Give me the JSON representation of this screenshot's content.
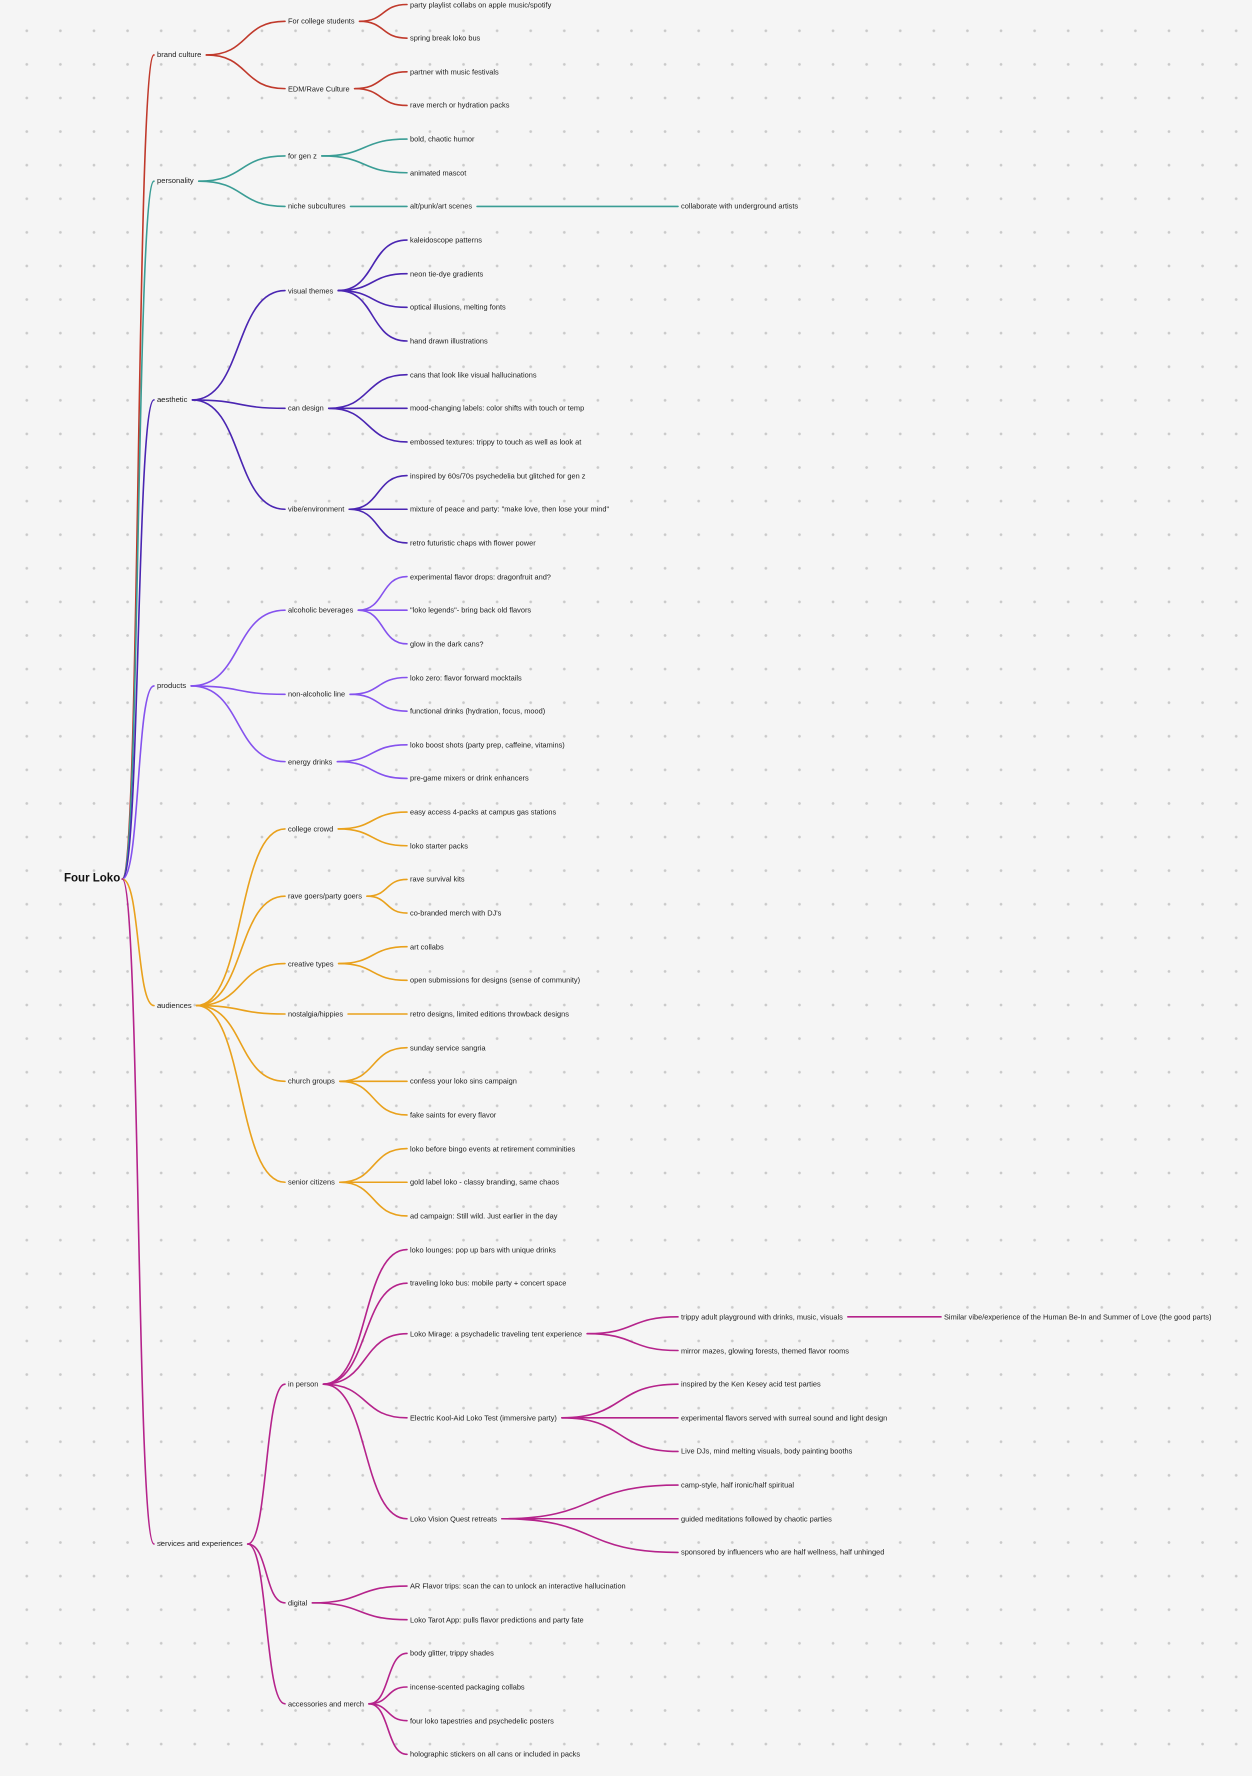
{
  "colors": {
    "background": "#f5f5f5",
    "grid_dot": "#c9c9c9",
    "brand_culture": "#c0392b",
    "personality": "#3a9d95",
    "aesthetic": "#4a25b2",
    "products": "#8552ee",
    "audiences": "#e9a11c",
    "services": "#b5238b"
  },
  "mindmap": {
    "root": "Four Loko",
    "branches": [
      {
        "label": "brand culture",
        "color": "#c0392b",
        "children": [
          {
            "label": "For college students",
            "children": [
              {
                "label": "party playlist collabs on apple music/spotify"
              },
              {
                "label": "spring break loko bus"
              }
            ]
          },
          {
            "label": "EDM/Rave Culture",
            "children": [
              {
                "label": "partner with music festivals"
              },
              {
                "label": "rave merch or hydration packs"
              }
            ]
          }
        ]
      },
      {
        "label": "personality",
        "color": "#3a9d95",
        "children": [
          {
            "label": "for gen z",
            "children": [
              {
                "label": "bold, chaotic humor"
              },
              {
                "label": "animated mascot"
              }
            ]
          },
          {
            "label": "niche subcultures",
            "children": [
              {
                "label": "alt/punk/art scenes",
                "children": [
                  {
                    "label": "collaborate with underground artists"
                  }
                ]
              }
            ]
          }
        ]
      },
      {
        "label": "aesthetic",
        "color": "#4a25b2",
        "children": [
          {
            "label": "visual themes",
            "children": [
              {
                "label": "kaleidoscope patterns"
              },
              {
                "label": "neon tie-dye gradients"
              },
              {
                "label": "optical illusions, melting fonts"
              },
              {
                "label": "hand drawn illustrations"
              }
            ]
          },
          {
            "label": "can design",
            "children": [
              {
                "label": "cans that look like visual hallucinations"
              },
              {
                "label": "mood-changing labels: color shifts with touch or temp"
              },
              {
                "label": "embossed textures: trippy to touch as well as look at"
              }
            ]
          },
          {
            "label": "vibe/environment",
            "children": [
              {
                "label": "inspired by 60s/70s psychedelia but glitched for gen z"
              },
              {
                "label": "mixture of peace and party: \"make love, then lose your mind\""
              },
              {
                "label": "retro futuristic chaps with flower power"
              }
            ]
          }
        ]
      },
      {
        "label": "products",
        "color": "#8552ee",
        "children": [
          {
            "label": "alcoholic beverages",
            "children": [
              {
                "label": "experimental flavor drops: dragonfruit and?"
              },
              {
                "label": "\"loko legends\"- bring back old flavors"
              },
              {
                "label": "glow in the dark cans?"
              }
            ]
          },
          {
            "label": "non-alcoholic line",
            "children": [
              {
                "label": "loko zero: flavor forward mocktails"
              },
              {
                "label": "functional drinks (hydration, focus, mood)"
              }
            ]
          },
          {
            "label": "energy drinks",
            "children": [
              {
                "label": "loko boost shots (party prep, caffeine, vitamins)"
              },
              {
                "label": "pre-game mixers or drink enhancers"
              }
            ]
          }
        ]
      },
      {
        "label": "audiences",
        "color": "#e9a11c",
        "children": [
          {
            "label": "college crowd",
            "children": [
              {
                "label": "easy access 4-packs at campus gas stations"
              },
              {
                "label": "loko starter packs"
              }
            ]
          },
          {
            "label": "rave goers/party goers",
            "children": [
              {
                "label": "rave survival kits"
              },
              {
                "label": "co-branded merch with DJ's"
              }
            ]
          },
          {
            "label": "creative types",
            "children": [
              {
                "label": "art collabs"
              },
              {
                "label": "open submissions for designs (sense of community)"
              }
            ]
          },
          {
            "label": "nostalgia/hippies",
            "children": [
              {
                "label": "retro designs, limited editions throwback designs"
              }
            ]
          },
          {
            "label": "church groups",
            "children": [
              {
                "label": "sunday service sangria"
              },
              {
                "label": "confess your loko sins campaign"
              },
              {
                "label": "fake saints for every flavor"
              }
            ]
          },
          {
            "label": "senior citizens",
            "children": [
              {
                "label": "loko before bingo events at retirement comminities"
              },
              {
                "label": "gold label loko - classy branding, same chaos"
              },
              {
                "label": "ad campaign: Still wild. Just earlier in the day"
              }
            ]
          }
        ]
      },
      {
        "label": "services and experiences",
        "color": "#b5238b",
        "children": [
          {
            "label": "in person",
            "children": [
              {
                "label": "loko lounges: pop up bars with unique drinks"
              },
              {
                "label": "traveling loko bus: mobile party + concert space"
              },
              {
                "label": "Loko Mirage: a psychadelic traveling tent experience",
                "children": [
                  {
                    "label": "trippy adult playground with drinks, music, visuals",
                    "children": [
                      {
                        "label": "Similar vibe/experience of the Human Be-In and Summer of Love (the good parts)"
                      }
                    ]
                  },
                  {
                    "label": "mirror mazes, glowing forests, themed flavor rooms"
                  }
                ]
              },
              {
                "label": "Electric Kool-Aid Loko Test (immersive party)",
                "children": [
                  {
                    "label": "inspired by the Ken Kesey acid test parties"
                  },
                  {
                    "label": "experimental flavors served with surreal sound and light design"
                  },
                  {
                    "label": "Live DJs, mind melting visuals, body painting booths"
                  }
                ]
              },
              {
                "label": "Loko Vision Quest retreats",
                "children": [
                  {
                    "label": "camp-style, half ironic/half spiritual"
                  },
                  {
                    "label": "guided meditations followed by chaotic parties"
                  },
                  {
                    "label": "sponsored by influencers who are half wellness, half unhinged"
                  }
                ]
              }
            ]
          },
          {
            "label": "digital",
            "children": [
              {
                "label": "AR Flavor trips: scan the can to unlock an interactive hallucination"
              },
              {
                "label": "Loko Tarot App: pulls flavor predictions and party fate"
              }
            ]
          },
          {
            "label": "accessories and merch",
            "children": [
              {
                "label": "body glitter, trippy shades"
              },
              {
                "label": "incense-scented packaging collabs"
              },
              {
                "label": "four loko tapestries and psychedelic posters"
              },
              {
                "label": "holographic stickers on all cans or included in packs"
              }
            ]
          }
        ]
      }
    ]
  }
}
